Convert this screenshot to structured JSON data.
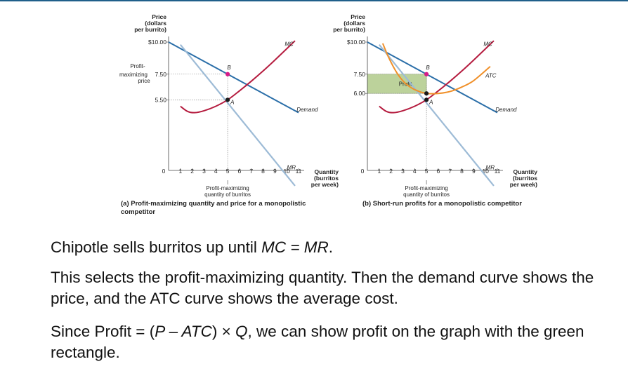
{
  "slide": {
    "line1": {
      "a": "Chipotle sells burritos up until ",
      "b": "MC = MR",
      "c": "."
    },
    "line2": "This selects the profit-maximizing quantity. Then the demand curve shows the price, and the ATC curve shows the average cost.",
    "line3": {
      "a": "Since Profit = (",
      "b": "P – ATC",
      "c": ") × ",
      "d": "Q",
      "e": ", we can show profit on the graph with the green rectangle."
    }
  },
  "colors": {
    "demand": "#2a6ea8",
    "mr": "#9dbbd6",
    "mc": "#b51c3f",
    "atc": "#f0902a",
    "profit_fill": "#bcd29b",
    "point_b": "#d61b88",
    "point_a": "#1a1a1a"
  },
  "chart_data": [
    {
      "type": "line",
      "caption": "(a) Profit-maximizing quantity and price for a monopolistic competitor",
      "ylabel": [
        "Price",
        "(dollars",
        "per burrito)"
      ],
      "xlabel": [
        "Quantity",
        "(burritos",
        "per week)"
      ],
      "xlim": [
        0,
        11
      ],
      "x_ticks": [
        "0",
        "1",
        "2",
        "3",
        "4",
        "5",
        "6",
        "7",
        "8",
        "9",
        "10",
        "11"
      ],
      "y_ticks": [
        {
          "value": 10,
          "label": "$10.00"
        },
        {
          "value": 7.5,
          "label": "7.50",
          "prefix": [
            "Profit-",
            "maximizing",
            "price"
          ]
        },
        {
          "value": 5.5,
          "label": "5.50"
        }
      ],
      "series": [
        {
          "name": "Demand",
          "x": [
            0,
            11
          ],
          "y": [
            10,
            4.5
          ]
        },
        {
          "name": "MR",
          "x": [
            1,
            10.7
          ],
          "y": [
            9.8,
            -1.2
          ]
        },
        {
          "name": "MC",
          "x": [
            1,
            1.6,
            2.2,
            3,
            4,
            5,
            6,
            7,
            8,
            9,
            10.7
          ],
          "y": [
            5.0,
            4.6,
            4.5,
            4.65,
            5.0,
            5.5,
            6.2,
            6.95,
            7.75,
            8.6,
            10.1
          ]
        }
      ],
      "points": [
        {
          "label": "B",
          "x": 5,
          "y": 7.5
        },
        {
          "label": "A",
          "x": 5,
          "y": 5.5
        }
      ],
      "annotations": [
        "Profit-maximizing",
        "quantity of burritos"
      ]
    },
    {
      "type": "line",
      "caption": "(b) Short-run profits for a monopolistic competitor",
      "ylabel": [
        "Price",
        "(dollars",
        "per burrito)"
      ],
      "xlabel": [
        "Quantity",
        "(burritos",
        "per week)"
      ],
      "xlim": [
        0,
        11
      ],
      "x_ticks": [
        "0",
        "1",
        "2",
        "3",
        "4",
        "5",
        "6",
        "7",
        "8",
        "9",
        "10",
        "11"
      ],
      "y_ticks": [
        {
          "value": 10,
          "label": "$10.00"
        },
        {
          "value": 7.5,
          "label": "7.50"
        },
        {
          "value": 6.0,
          "label": "6.00"
        }
      ],
      "series": [
        {
          "name": "Demand",
          "x": [
            0,
            11
          ],
          "y": [
            10,
            4.5
          ]
        },
        {
          "name": "MR",
          "x": [
            1,
            10.7
          ],
          "y": [
            9.8,
            -1.2
          ]
        },
        {
          "name": "MC",
          "x": [
            1,
            1.6,
            2.2,
            3,
            4,
            5,
            6,
            7,
            8,
            9,
            10.7
          ],
          "y": [
            5.0,
            4.6,
            4.5,
            4.65,
            5.0,
            5.5,
            6.2,
            6.95,
            7.75,
            8.6,
            10.1
          ]
        },
        {
          "name": "ATC",
          "x": [
            1.3,
            1.8,
            2.5,
            3.2,
            4,
            5,
            6,
            7,
            8,
            9,
            10.4
          ],
          "y": [
            9.9,
            8.8,
            7.6,
            6.8,
            6.3,
            6.0,
            6.0,
            6.15,
            6.5,
            7.0,
            8.1
          ]
        }
      ],
      "points": [
        {
          "label": "B",
          "x": 5,
          "y": 7.5
        },
        {
          "label": "",
          "x": 5,
          "y": 6.0
        },
        {
          "label": "A",
          "x": 5,
          "y": 5.5
        }
      ],
      "profit_rect": {
        "x": [
          0,
          5
        ],
        "y": [
          6.0,
          7.5
        ],
        "label": "Profit"
      },
      "annotations": [
        "Profit-maximizing",
        "quantity of burritos"
      ]
    }
  ]
}
